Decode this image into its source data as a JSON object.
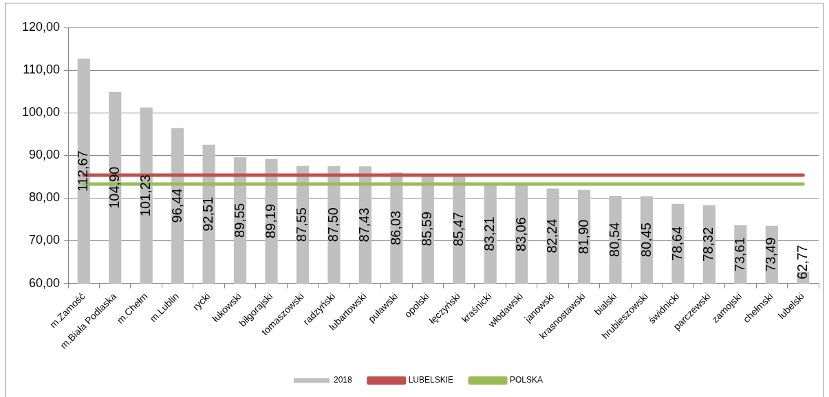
{
  "chart_data": {
    "type": "bar",
    "categories": [
      "m.Zamość",
      "m.Biała Podlaska",
      "m.Chełm",
      "m.Lublin",
      "rycki",
      "łukowski",
      "biłgorajski",
      "tomaszowski",
      "radzyński",
      "lubartowski",
      "puławski",
      "opolski",
      "łęczyński",
      "kraśnicki",
      "włodawski",
      "janowski",
      "krasnostawski",
      "bialski",
      "hrubieszowski",
      "świdnicki",
      "parczewski",
      "zamojski",
      "chełmski",
      "lubelski"
    ],
    "series": [
      {
        "name": "2018",
        "color": "#c0c0c0",
        "values": [
          112.67,
          104.9,
          101.23,
          96.44,
          92.51,
          89.55,
          89.19,
          87.55,
          87.5,
          87.43,
          86.03,
          85.59,
          85.47,
          83.21,
          83.06,
          82.24,
          81.9,
          80.54,
          80.45,
          78.64,
          78.32,
          73.61,
          73.49,
          62.77
        ],
        "value_labels": [
          "112,67",
          "104,90",
          "101,23",
          "96,44",
          "92,51",
          "89,55",
          "89,19",
          "87,55",
          "87,50",
          "87,43",
          "86,03",
          "85,59",
          "85,47",
          "83,21",
          "83,06",
          "82,24",
          "81,90",
          "80,54",
          "80,45",
          "78,64",
          "78,32",
          "73,61",
          "73,49",
          "62,77"
        ]
      },
      {
        "name": "LUBELSKIE",
        "type": "line",
        "color": "#c0504d",
        "values": [
          85.4,
          85.4,
          85.4,
          85.4,
          85.4,
          85.4,
          85.4,
          85.4,
          85.4,
          85.4,
          85.4,
          85.4,
          85.4,
          85.4,
          85.4,
          85.4,
          85.4,
          85.4,
          85.4,
          85.4,
          85.4,
          85.4,
          85.4,
          85.4
        ]
      },
      {
        "name": "POLSKA",
        "type": "line",
        "color": "#9bbb59",
        "values": [
          83.3,
          83.3,
          83.3,
          83.3,
          83.3,
          83.3,
          83.3,
          83.3,
          83.3,
          83.3,
          83.3,
          83.3,
          83.3,
          83.3,
          83.3,
          83.3,
          83.3,
          83.3,
          83.3,
          83.3,
          83.3,
          83.3,
          83.3,
          83.3
        ]
      }
    ],
    "ylim": [
      60,
      120
    ],
    "yticks": [
      {
        "value": 60,
        "label": "60,00"
      },
      {
        "value": 70,
        "label": "70,00"
      },
      {
        "value": 80,
        "label": "80,00"
      },
      {
        "value": 90,
        "label": "90,00"
      },
      {
        "value": 100,
        "label": "100,00"
      },
      {
        "value": 110,
        "label": "110,00"
      },
      {
        "value": 120,
        "label": "120,00"
      }
    ],
    "grid": "y",
    "legend": "bottom",
    "marker": "none",
    "line_style": "solid"
  }
}
